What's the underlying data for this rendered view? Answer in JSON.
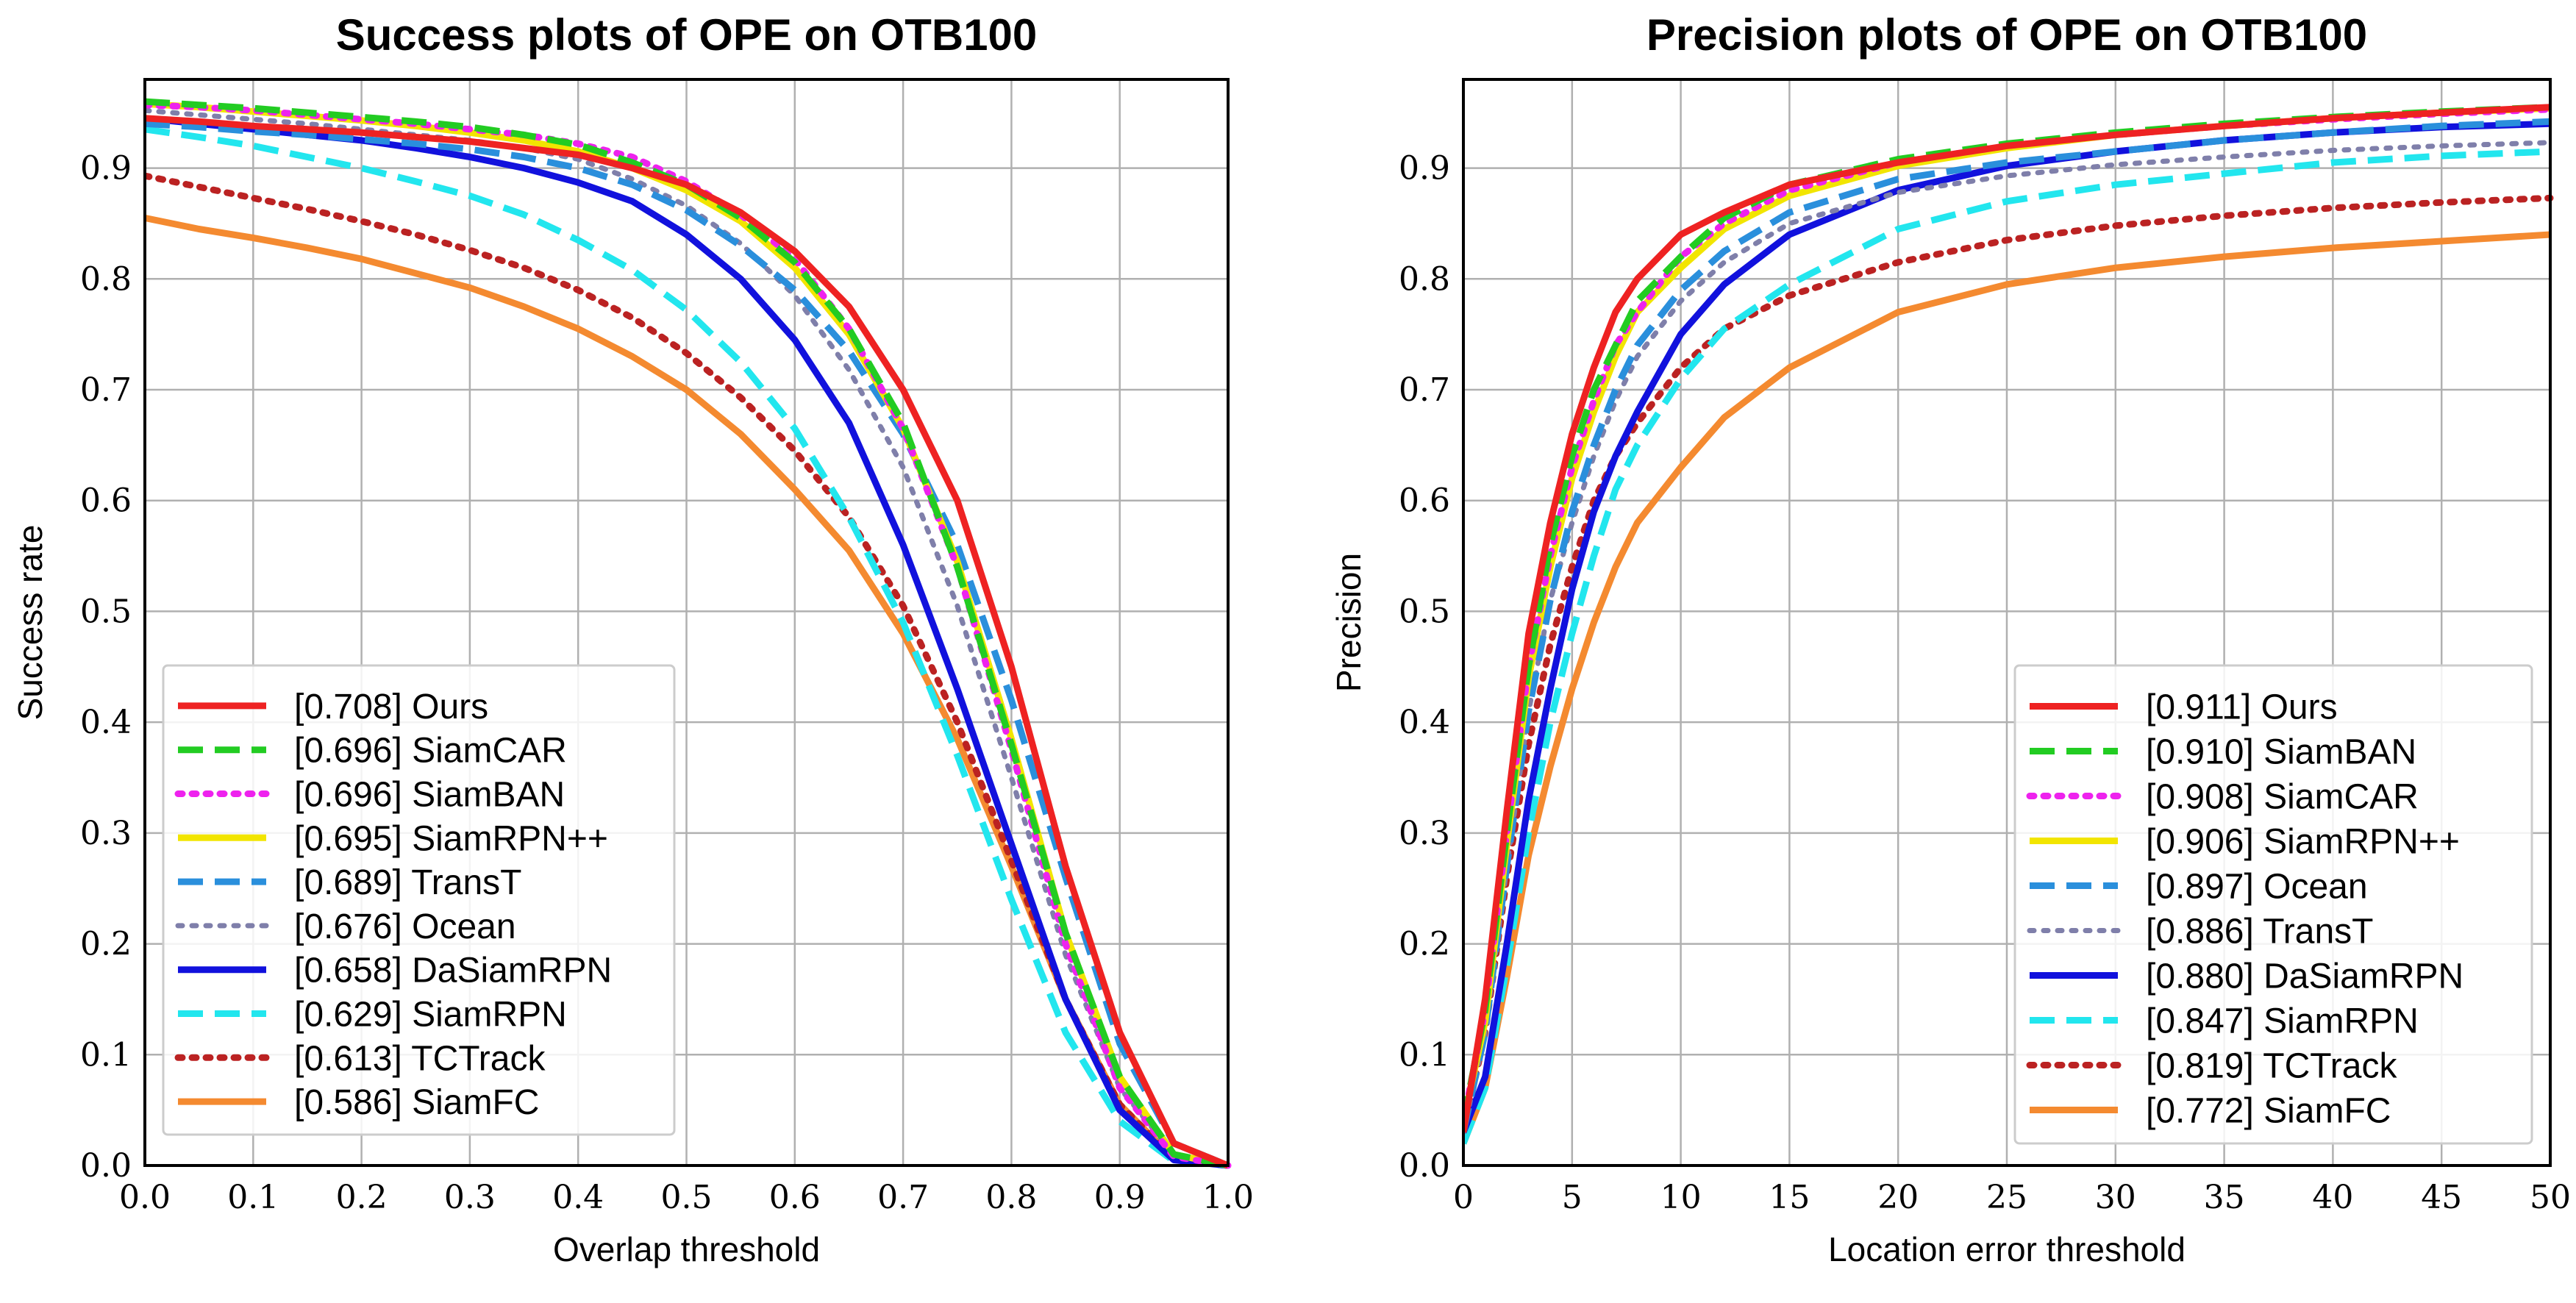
{
  "chart_data": [
    {
      "type": "line",
      "title": "Success plots of OPE on OTB100",
      "xlabel": "Overlap threshold",
      "ylabel": "Success rate",
      "xlim": [
        0,
        1
      ],
      "ylim": [
        0,
        0.98
      ],
      "xticks": [
        "0.0",
        "0.1",
        "0.2",
        "0.3",
        "0.4",
        "0.5",
        "0.6",
        "0.7",
        "0.8",
        "0.9",
        "1.0"
      ],
      "yticks": [
        "0.0",
        "0.1",
        "0.2",
        "0.3",
        "0.4",
        "0.5",
        "0.6",
        "0.7",
        "0.8",
        "0.9"
      ],
      "grid": true,
      "legend_position": "lower-left",
      "x": [
        0,
        0.05,
        0.1,
        0.15,
        0.2,
        0.25,
        0.3,
        0.35,
        0.4,
        0.45,
        0.5,
        0.55,
        0.6,
        0.65,
        0.7,
        0.75,
        0.8,
        0.85,
        0.9,
        0.95,
        1.0
      ],
      "series": [
        {
          "name": "Ours",
          "label": "[0.708] Ours",
          "color": "#ee2222",
          "style": "solid",
          "width": 9,
          "values": [
            0.945,
            0.942,
            0.938,
            0.935,
            0.932,
            0.928,
            0.924,
            0.918,
            0.912,
            0.9,
            0.885,
            0.86,
            0.825,
            0.775,
            0.7,
            0.6,
            0.45,
            0.27,
            0.12,
            0.02,
            0.0
          ]
        },
        {
          "name": "SiamCAR",
          "label": "[0.696] SiamCAR",
          "color": "#22cc22",
          "style": "dashed",
          "width": 9,
          "values": [
            0.96,
            0.957,
            0.954,
            0.95,
            0.946,
            0.942,
            0.937,
            0.93,
            0.921,
            0.905,
            0.885,
            0.855,
            0.815,
            0.755,
            0.67,
            0.54,
            0.38,
            0.21,
            0.08,
            0.01,
            0.0
          ]
        },
        {
          "name": "SiamBAN",
          "label": "[0.696] SiamBAN",
          "color": "#ee22ee",
          "style": "dotted",
          "width": 9,
          "values": [
            0.957,
            0.955,
            0.952,
            0.948,
            0.944,
            0.94,
            0.935,
            0.93,
            0.922,
            0.91,
            0.888,
            0.858,
            0.818,
            0.755,
            0.665,
            0.54,
            0.375,
            0.2,
            0.07,
            0.008,
            0.0
          ]
        },
        {
          "name": "SiamRPN++",
          "label": "[0.695] SiamRPN++",
          "color": "#f2e500",
          "style": "solid",
          "width": 9,
          "values": [
            0.958,
            0.955,
            0.951,
            0.947,
            0.943,
            0.938,
            0.932,
            0.925,
            0.915,
            0.9,
            0.88,
            0.852,
            0.81,
            0.75,
            0.665,
            0.545,
            0.385,
            0.21,
            0.08,
            0.01,
            0.0
          ]
        },
        {
          "name": "TransT",
          "label": "[0.689] TransT",
          "color": "#2a8fdc",
          "style": "dashed",
          "width": 9,
          "values": [
            0.94,
            0.937,
            0.933,
            0.93,
            0.926,
            0.922,
            0.917,
            0.91,
            0.9,
            0.885,
            0.862,
            0.83,
            0.79,
            0.735,
            0.66,
            0.56,
            0.42,
            0.26,
            0.11,
            0.02,
            0.0
          ]
        },
        {
          "name": "Ocean",
          "label": "[0.676] Ocean",
          "color": "#7f7faa",
          "style": "dotted",
          "width": 7,
          "values": [
            0.952,
            0.948,
            0.944,
            0.94,
            0.935,
            0.93,
            0.925,
            0.918,
            0.908,
            0.89,
            0.866,
            0.832,
            0.785,
            0.718,
            0.63,
            0.505,
            0.35,
            0.19,
            0.07,
            0.01,
            0.0
          ]
        },
        {
          "name": "DaSiamRPN",
          "label": "[0.658] DaSiamRPN",
          "color": "#1111dd",
          "style": "solid",
          "width": 9,
          "values": [
            0.945,
            0.94,
            0.935,
            0.93,
            0.925,
            0.918,
            0.91,
            0.9,
            0.887,
            0.87,
            0.84,
            0.8,
            0.745,
            0.67,
            0.56,
            0.43,
            0.29,
            0.15,
            0.05,
            0.005,
            0.0
          ]
        },
        {
          "name": "SiamRPN",
          "label": "[0.629] SiamRPN",
          "color": "#22e6ee",
          "style": "dashed",
          "width": 9,
          "values": [
            0.935,
            0.928,
            0.92,
            0.91,
            0.9,
            0.888,
            0.875,
            0.858,
            0.835,
            0.808,
            0.772,
            0.725,
            0.665,
            0.585,
            0.49,
            0.37,
            0.24,
            0.12,
            0.04,
            0.004,
            0.0
          ]
        },
        {
          "name": "TCTrack",
          "label": "[0.613] TCTrack",
          "color": "#bb2222",
          "style": "dotted",
          "width": 9,
          "values": [
            0.893,
            0.883,
            0.873,
            0.863,
            0.852,
            0.84,
            0.826,
            0.81,
            0.79,
            0.765,
            0.733,
            0.693,
            0.645,
            0.585,
            0.505,
            0.4,
            0.275,
            0.15,
            0.055,
            0.006,
            0.0
          ]
        },
        {
          "name": "SiamFC",
          "label": "[0.586] SiamFC",
          "color": "#f48a30",
          "style": "solid",
          "width": 9,
          "values": [
            0.855,
            0.845,
            0.837,
            0.828,
            0.818,
            0.805,
            0.792,
            0.775,
            0.755,
            0.73,
            0.7,
            0.66,
            0.61,
            0.555,
            0.48,
            0.385,
            0.27,
            0.15,
            0.055,
            0.006,
            0.0
          ]
        }
      ]
    },
    {
      "type": "line",
      "title": "Precision plots of OPE on OTB100",
      "xlabel": "Location error threshold",
      "ylabel": "Precision",
      "xlim": [
        0,
        50
      ],
      "ylim": [
        0,
        0.98
      ],
      "xticks": [
        "0",
        "5",
        "10",
        "15",
        "20",
        "25",
        "30",
        "35",
        "40",
        "45",
        "50"
      ],
      "yticks": [
        "0.0",
        "0.1",
        "0.2",
        "0.3",
        "0.4",
        "0.5",
        "0.6",
        "0.7",
        "0.8",
        "0.9"
      ],
      "grid": true,
      "legend_position": "lower-right",
      "x": [
        0,
        1,
        2,
        3,
        4,
        5,
        6,
        7,
        8,
        10,
        12,
        15,
        20,
        25,
        30,
        35,
        40,
        45,
        50
      ],
      "series": [
        {
          "name": "Ours",
          "label": "[0.911] Ours",
          "color": "#ee2222",
          "style": "solid",
          "width": 9,
          "values": [
            0.03,
            0.15,
            0.32,
            0.48,
            0.58,
            0.66,
            0.72,
            0.77,
            0.8,
            0.84,
            0.86,
            0.885,
            0.905,
            0.92,
            0.93,
            0.938,
            0.945,
            0.95,
            0.955
          ]
        },
        {
          "name": "SiamBAN",
          "label": "[0.910] SiamBAN",
          "color": "#22cc22",
          "style": "dashed",
          "width": 9,
          "values": [
            0.04,
            0.14,
            0.3,
            0.45,
            0.56,
            0.64,
            0.7,
            0.74,
            0.78,
            0.82,
            0.855,
            0.885,
            0.908,
            0.922,
            0.932,
            0.94,
            0.946,
            0.951,
            0.955
          ]
        },
        {
          "name": "SiamCAR",
          "label": "[0.908] SiamCAR",
          "color": "#ee22ee",
          "style": "dotted",
          "width": 9,
          "values": [
            0.04,
            0.14,
            0.3,
            0.45,
            0.55,
            0.63,
            0.69,
            0.74,
            0.77,
            0.82,
            0.85,
            0.88,
            0.905,
            0.92,
            0.93,
            0.938,
            0.944,
            0.949,
            0.953
          ]
        },
        {
          "name": "SiamRPN++",
          "label": "[0.906] SiamRPN++",
          "color": "#f2e500",
          "style": "solid",
          "width": 9,
          "values": [
            0.04,
            0.13,
            0.29,
            0.44,
            0.54,
            0.62,
            0.68,
            0.73,
            0.77,
            0.81,
            0.845,
            0.875,
            0.902,
            0.918,
            0.93,
            0.938,
            0.945,
            0.95,
            0.954
          ]
        },
        {
          "name": "Ocean",
          "label": "[0.897] Ocean",
          "color": "#2a8fdc",
          "style": "dashed",
          "width": 9,
          "values": [
            0.03,
            0.12,
            0.27,
            0.41,
            0.51,
            0.59,
            0.65,
            0.7,
            0.74,
            0.79,
            0.825,
            0.86,
            0.89,
            0.905,
            0.915,
            0.925,
            0.932,
            0.938,
            0.942
          ]
        },
        {
          "name": "TransT",
          "label": "[0.886] TransT",
          "color": "#7f7faa",
          "style": "dotted",
          "width": 7,
          "values": [
            0.03,
            0.12,
            0.27,
            0.41,
            0.51,
            0.58,
            0.64,
            0.69,
            0.73,
            0.78,
            0.815,
            0.85,
            0.878,
            0.893,
            0.903,
            0.91,
            0.916,
            0.92,
            0.923
          ]
        },
        {
          "name": "DaSiamRPN",
          "label": "[0.880] DaSiamRPN",
          "color": "#1111dd",
          "style": "solid",
          "width": 9,
          "values": [
            0.03,
            0.08,
            0.2,
            0.33,
            0.43,
            0.52,
            0.59,
            0.64,
            0.68,
            0.75,
            0.795,
            0.84,
            0.88,
            0.902,
            0.915,
            0.925,
            0.932,
            0.937,
            0.94
          ]
        },
        {
          "name": "SiamRPN",
          "label": "[0.847] SiamRPN",
          "color": "#22e6ee",
          "style": "dashed",
          "width": 9,
          "values": [
            0.02,
            0.07,
            0.18,
            0.3,
            0.4,
            0.48,
            0.55,
            0.61,
            0.65,
            0.71,
            0.755,
            0.795,
            0.845,
            0.87,
            0.885,
            0.895,
            0.905,
            0.911,
            0.915
          ]
        },
        {
          "name": "TCTrack",
          "label": "[0.819] TCTrack",
          "color": "#bb2222",
          "style": "dotted",
          "width": 9,
          "values": [
            0.03,
            0.12,
            0.26,
            0.38,
            0.47,
            0.54,
            0.6,
            0.64,
            0.67,
            0.72,
            0.755,
            0.785,
            0.815,
            0.835,
            0.848,
            0.857,
            0.864,
            0.869,
            0.873
          ]
        },
        {
          "name": "SiamFC",
          "label": "[0.772] SiamFC",
          "color": "#f48a30",
          "style": "solid",
          "width": 9,
          "values": [
            0.02,
            0.07,
            0.17,
            0.28,
            0.36,
            0.43,
            0.49,
            0.54,
            0.58,
            0.63,
            0.675,
            0.72,
            0.77,
            0.795,
            0.81,
            0.82,
            0.828,
            0.834,
            0.84
          ]
        }
      ]
    }
  ]
}
